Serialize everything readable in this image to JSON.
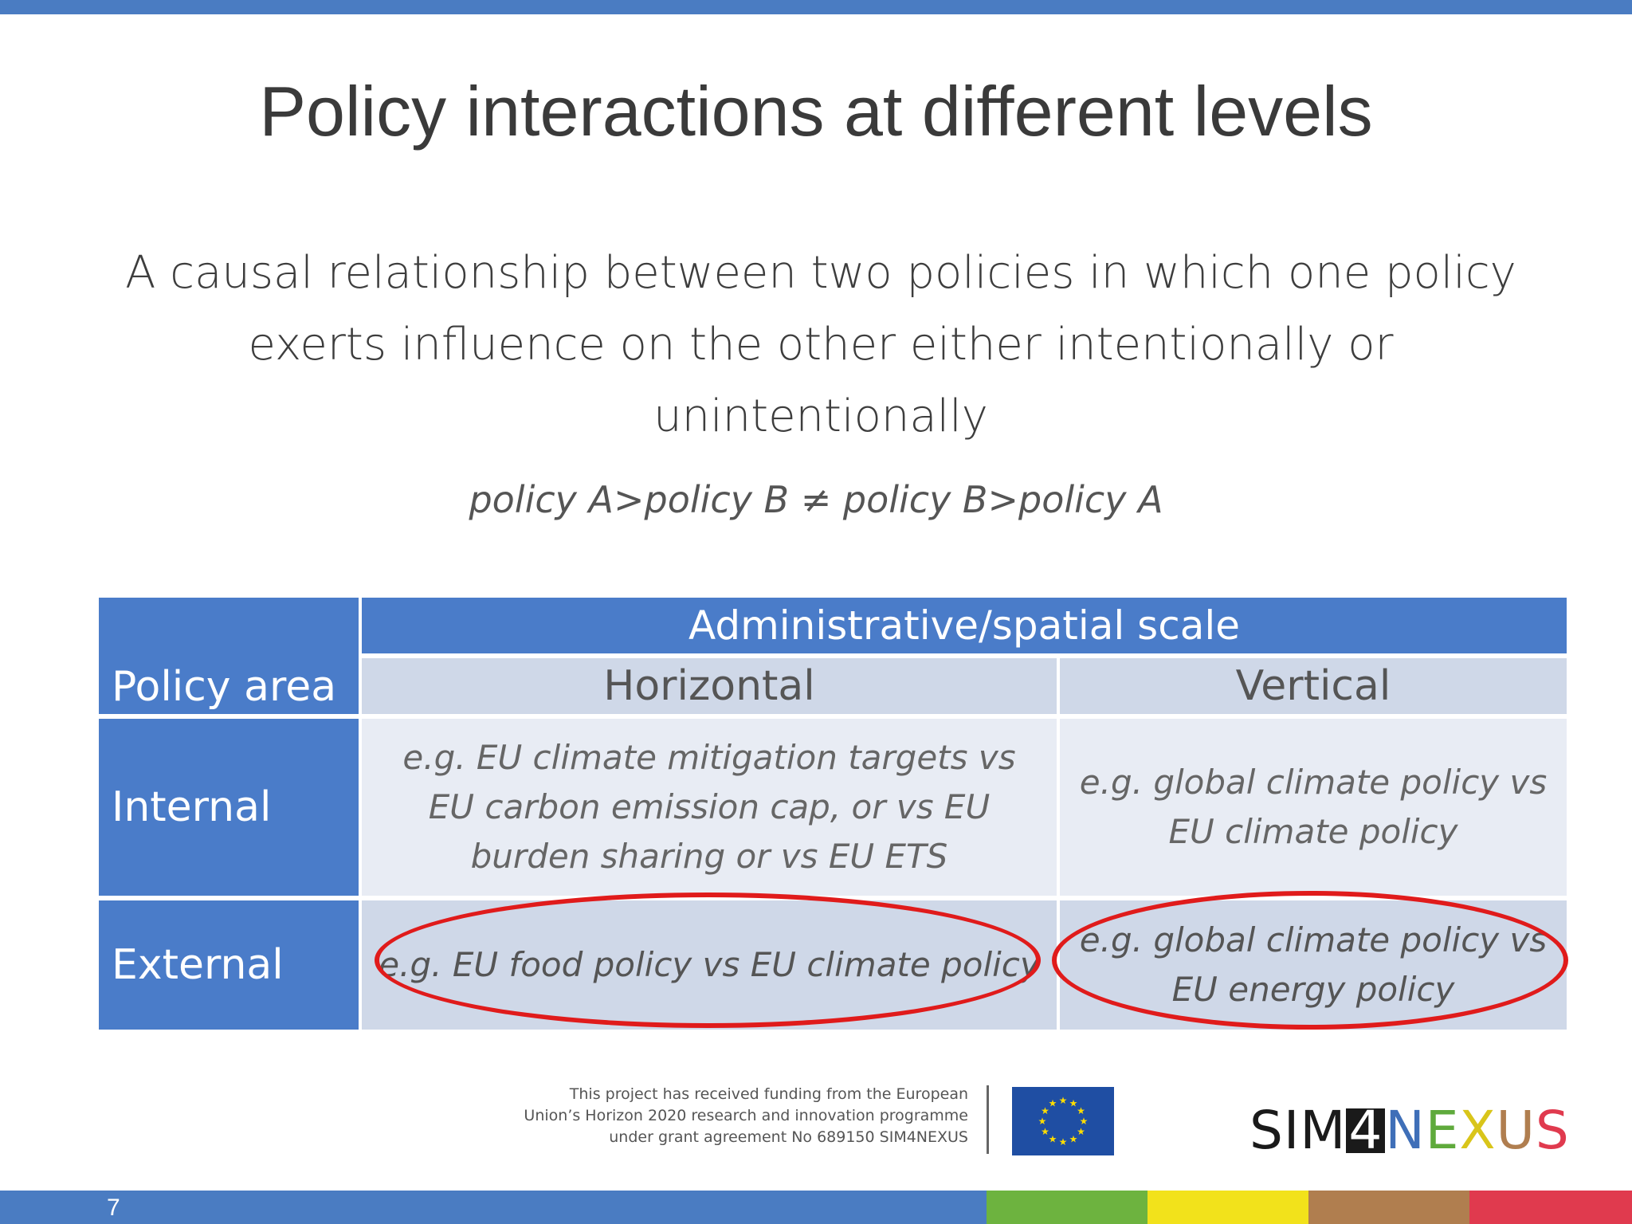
{
  "slide": {
    "title": "Policy interactions at different levels",
    "definition": "A causal relationship between two policies in which one policy exerts influence on the other either intentionally or unintentionally",
    "formula": "policy A>policy B  ≠ policy B>policy A",
    "page_number": "7"
  },
  "table": {
    "scale_header": "Administrative/spatial scale",
    "policy_area_header": "Policy area",
    "horizontal_header": "Horizontal",
    "vertical_header": "Vertical",
    "rows": [
      {
        "label": "Internal",
        "horizontal": "e.g. EU climate mitigation targets vs EU carbon emission cap, or vs EU burden sharing or vs EU ETS",
        "vertical": "e.g. global climate policy vs EU climate policy"
      },
      {
        "label": "External",
        "horizontal": "e.g. EU food policy vs EU climate policy",
        "vertical": "e.g. global climate policy vs EU energy policy"
      }
    ],
    "highlight_color": "#e01b1b"
  },
  "footer": {
    "funding_lines": [
      "This project has received funding from the European",
      "Union’s Horizon 2020 research and innovation programme",
      "under grant agreement No 689150 SIM4NEXUS"
    ],
    "logo_text": "SIM4NEXUS",
    "logo_icon": "eu-flag-icon",
    "bar_colors": [
      "#4a7cc2",
      "#6db33f",
      "#f2e21b",
      "#b07e4f",
      "#e03a4e"
    ]
  }
}
